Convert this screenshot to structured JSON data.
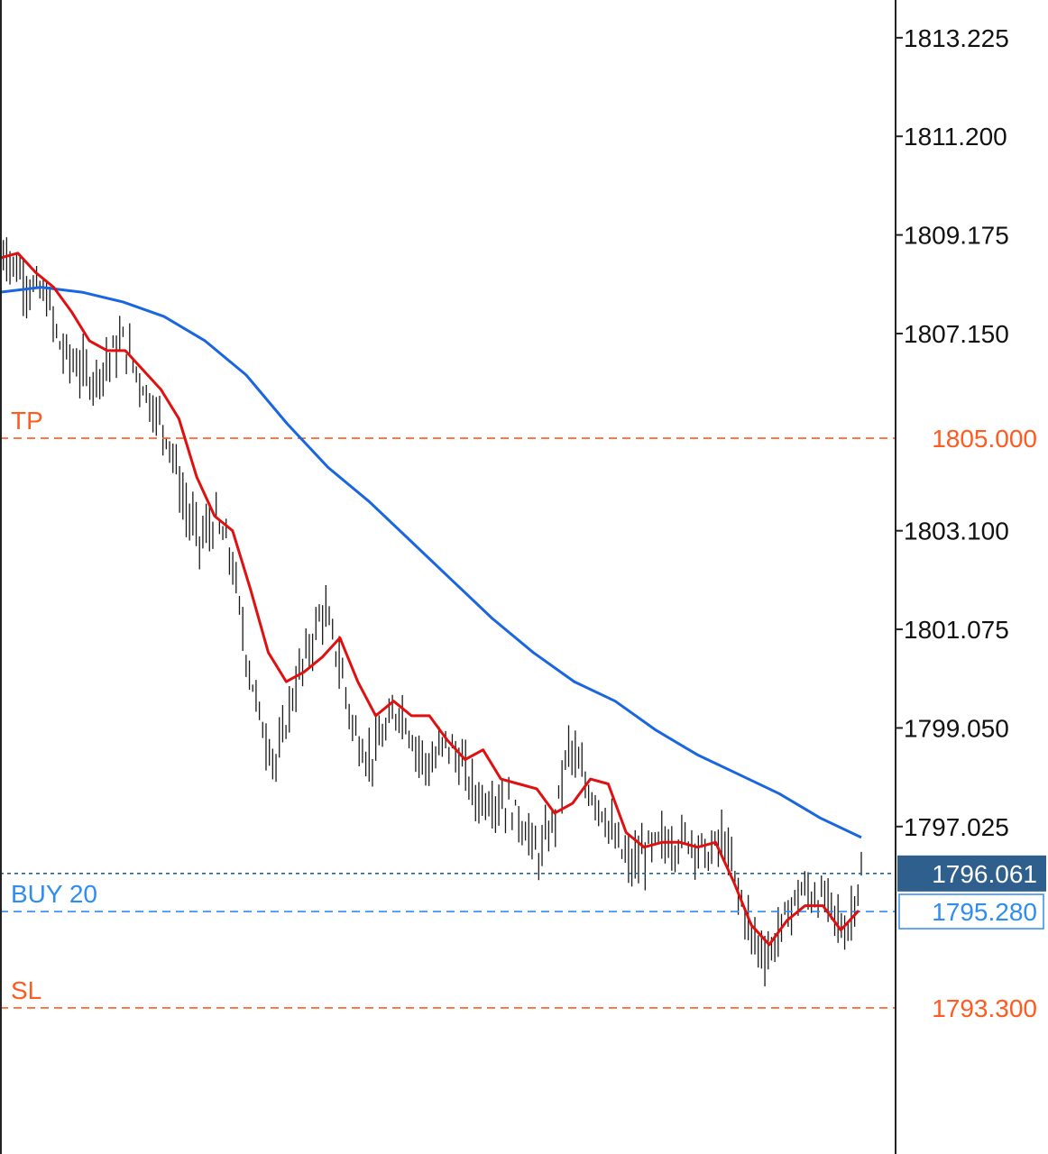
{
  "chart_data": {
    "type": "line",
    "ylim": [
      1790.3,
      1814.0
    ],
    "y_ticks": [
      "1813.225",
      "1811.200",
      "1809.175",
      "1807.150",
      "1803.100",
      "1801.075",
      "1799.050",
      "1797.025"
    ],
    "colors": {
      "background": "#ffffff",
      "price_bars": "#1a1a1a",
      "fast_ma": "#e01010",
      "slow_ma": "#1a66e0",
      "tp_sl": "#ff5a1f",
      "order": "#2f8cf0",
      "current_bg": "#2f5f8c",
      "axis_line": "#222222"
    },
    "levels": {
      "tp": {
        "label": "TP",
        "price": 1805.0,
        "tag": "1805.000"
      },
      "sl": {
        "label": "SL",
        "price": 1793.3,
        "tag": "1793.300"
      },
      "order": {
        "label": "BUY 20",
        "price": 1795.28,
        "tag": "1795.280"
      },
      "current": {
        "price": 1796.061,
        "tag": "1796.061"
      }
    },
    "price_series": {
      "name": "",
      "values": [
        1809.0,
        1808.5,
        1808.1,
        1807.9,
        1806.8,
        1806.5,
        1806.2,
        1806.6,
        1807.0,
        1806.3,
        1805.6,
        1805.0,
        1803.6,
        1802.9,
        1803.3,
        1802.6,
        1800.6,
        1799.1,
        1798.3,
        1799.7,
        1800.6,
        1801.5,
        1800.5,
        1799.0,
        1798.4,
        1798.9,
        1799.5,
        1798.7,
        1798.2,
        1798.8,
        1798.3,
        1797.6,
        1797.6,
        1797.5,
        1797.1,
        1796.4,
        1797.1,
        1798.7,
        1797.9,
        1797.5,
        1796.7,
        1796.2,
        1796.5,
        1796.7,
        1796.7,
        1796.8,
        1796.4,
        1796.8,
        1795.7,
        1794.7,
        1794.4,
        1795.1,
        1795.7,
        1795.6,
        1795.4,
        1794.8,
        1796.1
      ]
    },
    "fast_ma": {
      "name": "",
      "values": [
        1808.7,
        1808.8,
        1808.4,
        1808.1,
        1807.6,
        1807.0,
        1806.8,
        1806.8,
        1806.4,
        1806.0,
        1805.4,
        1804.2,
        1803.4,
        1803.1,
        1801.9,
        1800.6,
        1800.0,
        1800.2,
        1800.5,
        1800.9,
        1800.0,
        1799.3,
        1799.6,
        1799.3,
        1799.3,
        1798.8,
        1798.4,
        1798.6,
        1798.0,
        1797.9,
        1797.8,
        1797.3,
        1797.5,
        1798.0,
        1797.9,
        1796.9,
        1796.6,
        1796.7,
        1796.7,
        1796.6,
        1796.7,
        1795.9,
        1795.0,
        1794.6,
        1795.1,
        1795.4,
        1795.4,
        1794.9,
        1795.3
      ]
    },
    "slow_ma": {
      "name": "",
      "values": [
        1808.0,
        1808.1,
        1808.0,
        1807.8,
        1807.5,
        1807.0,
        1806.3,
        1805.3,
        1804.4,
        1803.7,
        1802.9,
        1802.1,
        1801.3,
        1800.6,
        1800.0,
        1799.6,
        1799.0,
        1798.5,
        1798.1,
        1797.7,
        1797.2,
        1796.8
      ]
    }
  }
}
